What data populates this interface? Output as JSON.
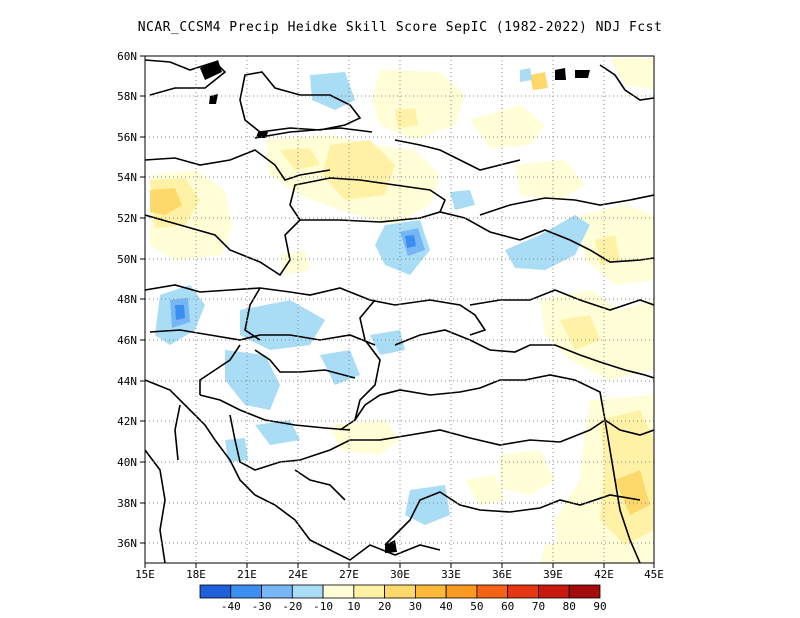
{
  "title": "NCAR_CCSM4 Precip Heidke Skill Score SepIC (1982-2022) NDJ Fcst",
  "map": {
    "lon_range": [
      15,
      45
    ],
    "lat_range": [
      35,
      60
    ],
    "x_ticks": [
      "15E",
      "18E",
      "21E",
      "24E",
      "27E",
      "30E",
      "33E",
      "36E",
      "39E",
      "42E",
      "45E"
    ],
    "y_ticks": [
      "36N",
      "38N",
      "40N",
      "42N",
      "44N",
      "46N",
      "48N",
      "50N",
      "52N",
      "54N",
      "56N",
      "58N",
      "60N"
    ],
    "gridlines": "dotted"
  },
  "colorbar": {
    "colors": [
      "#1f5fd9",
      "#3b8ff0",
      "#77b6f5",
      "#a9dcf5",
      "#fffed6",
      "#fff2a6",
      "#fdd86a",
      "#fbb83a",
      "#fb9821",
      "#f56315",
      "#e63612",
      "#c9180f",
      "#a30c0b"
    ],
    "labels": [
      "-40",
      "-30",
      "-20",
      "-10",
      "10",
      "20",
      "30",
      "40",
      "50",
      "60",
      "70",
      "80",
      "90"
    ]
  }
}
